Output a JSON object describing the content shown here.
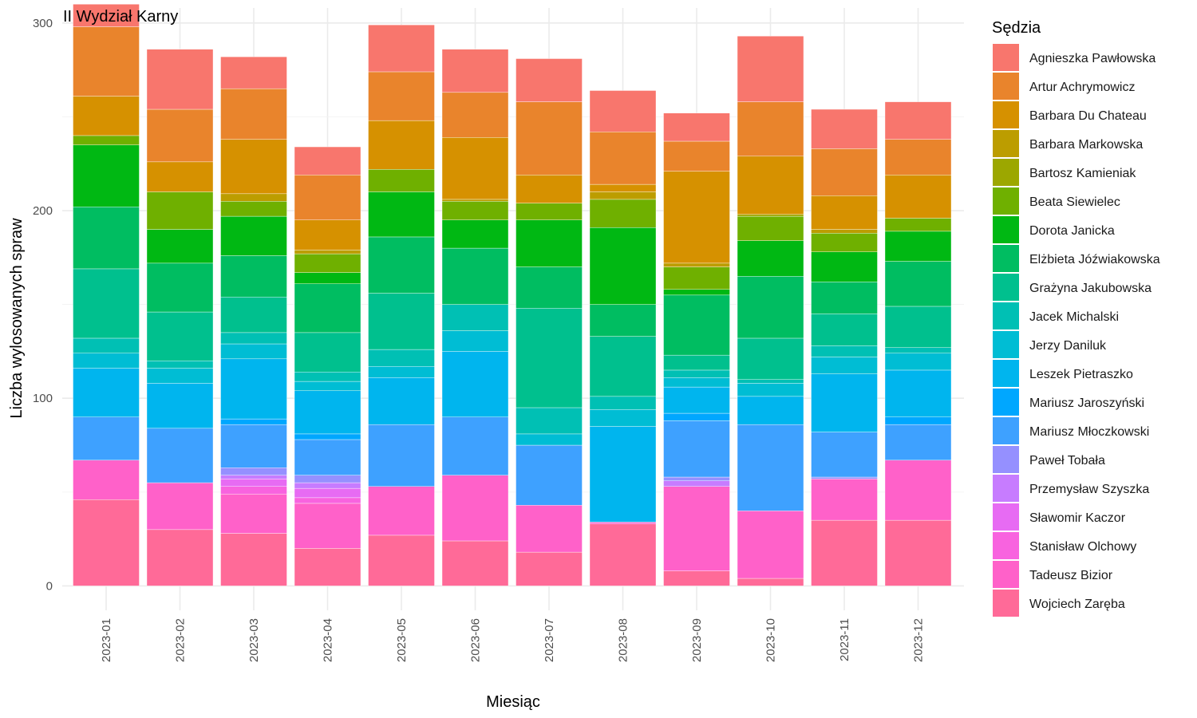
{
  "chart_data": {
    "type": "bar",
    "stacked": true,
    "title": "II Wydział Karny",
    "xlabel": "Miesiąc",
    "ylabel": "Liczba wylosowanych spraw",
    "ylim": [
      -13,
      308
    ],
    "yticks": [
      0,
      100,
      200,
      300
    ],
    "grid": true,
    "legend_title": "Sędzia",
    "legend_position": "right",
    "categories": [
      "2023-01",
      "2023-02",
      "2023-03",
      "2023-04",
      "2023-05",
      "2023-06",
      "2023-07",
      "2023-08",
      "2023-09",
      "2023-10",
      "2023-11",
      "2023-12"
    ],
    "series": [
      {
        "name": "Agnieszka Pawłowska",
        "color": "#F8766D",
        "values": [
          12,
          32,
          17,
          15,
          25,
          23,
          23,
          22,
          15,
          35,
          21,
          20
        ]
      },
      {
        "name": "Artur Achrymowicz",
        "color": "#E9842C",
        "values": [
          37,
          28,
          27,
          24,
          26,
          24,
          39,
          28,
          16,
          29,
          25,
          19
        ]
      },
      {
        "name": "Barbara Du Chateau",
        "color": "#D69100",
        "values": [
          21,
          16,
          29,
          16,
          26,
          33,
          15,
          4,
          49,
          31,
          18,
          23
        ]
      },
      {
        "name": "Barbara Markowska",
        "color": "#BC9D00",
        "values": [
          0,
          0,
          4,
          2,
          0,
          1,
          0,
          4,
          2,
          0,
          2,
          0
        ]
      },
      {
        "name": "Bartosz Kamieniak",
        "color": "#9CA700",
        "values": [
          0,
          0,
          0,
          0,
          0,
          0,
          0,
          0,
          0,
          1,
          0,
          0
        ]
      },
      {
        "name": "Beata Siewielec",
        "color": "#6FB000",
        "values": [
          5,
          20,
          8,
          10,
          12,
          10,
          9,
          15,
          12,
          13,
          10,
          7
        ]
      },
      {
        "name": "Dorota Janicka",
        "color": "#00B813",
        "values": [
          33,
          18,
          21,
          6,
          24,
          15,
          25,
          41,
          3,
          19,
          16,
          16
        ]
      },
      {
        "name": "Elżbieta Jóźwiakowska",
        "color": "#00BD61",
        "values": [
          33,
          26,
          22,
          26,
          30,
          30,
          22,
          17,
          32,
          33,
          17,
          24
        ]
      },
      {
        "name": "Grażyna Jakubowska",
        "color": "#00C08E",
        "values": [
          37,
          26,
          19,
          21,
          30,
          0,
          53,
          32,
          8,
          22,
          17,
          22
        ]
      },
      {
        "name": "Jacek Michalski",
        "color": "#00C0B4",
        "values": [
          8,
          4,
          6,
          5,
          9,
          14,
          14,
          7,
          4,
          2,
          6,
          3
        ]
      },
      {
        "name": "Jerzy Daniluk",
        "color": "#00BDD4",
        "values": [
          8,
          8,
          8,
          5,
          6,
          11,
          6,
          9,
          5,
          7,
          9,
          9
        ]
      },
      {
        "name": "Leszek Pietraszko",
        "color": "#00B5EE",
        "values": [
          26,
          24,
          32,
          23,
          25,
          35,
          0,
          51,
          14,
          15,
          31,
          25
        ]
      },
      {
        "name": "Mariusz Jaroszyński",
        "color": "#00A7FF",
        "values": [
          0,
          0,
          3,
          3,
          0,
          0,
          0,
          0,
          4,
          0,
          0,
          4
        ]
      },
      {
        "name": "Mariusz Młoczkowski",
        "color": "#3EA1FF",
        "values": [
          23,
          29,
          23,
          19,
          33,
          31,
          32,
          0,
          30,
          46,
          24,
          19
        ]
      },
      {
        "name": "Paweł Tobała",
        "color": "#9590FF",
        "values": [
          0,
          0,
          4,
          4,
          0,
          0,
          0,
          0,
          2,
          0,
          1,
          0
        ]
      },
      {
        "name": "Przemysław Szyszka",
        "color": "#C77CFF",
        "values": [
          0,
          0,
          2,
          3,
          0,
          0,
          0,
          0,
          3,
          0,
          0,
          0
        ]
      },
      {
        "name": "Sławomir Kaczor",
        "color": "#E76BF3",
        "values": [
          0,
          0,
          4,
          5,
          0,
          0,
          0,
          0,
          0,
          0,
          0,
          0
        ]
      },
      {
        "name": "Stanisław Olchowy",
        "color": "#F863DF",
        "values": [
          0,
          0,
          4,
          3,
          0,
          0,
          0,
          0,
          0,
          0,
          0,
          0
        ]
      },
      {
        "name": "Tadeusz Bizior",
        "color": "#FF61C9",
        "values": [
          21,
          25,
          21,
          24,
          26,
          35,
          25,
          1,
          45,
          36,
          22,
          32
        ]
      },
      {
        "name": "Wojciech Zaręba",
        "color": "#FF6A98",
        "values": [
          46,
          30,
          28,
          20,
          27,
          24,
          18,
          33,
          8,
          4,
          35,
          35
        ]
      }
    ]
  }
}
